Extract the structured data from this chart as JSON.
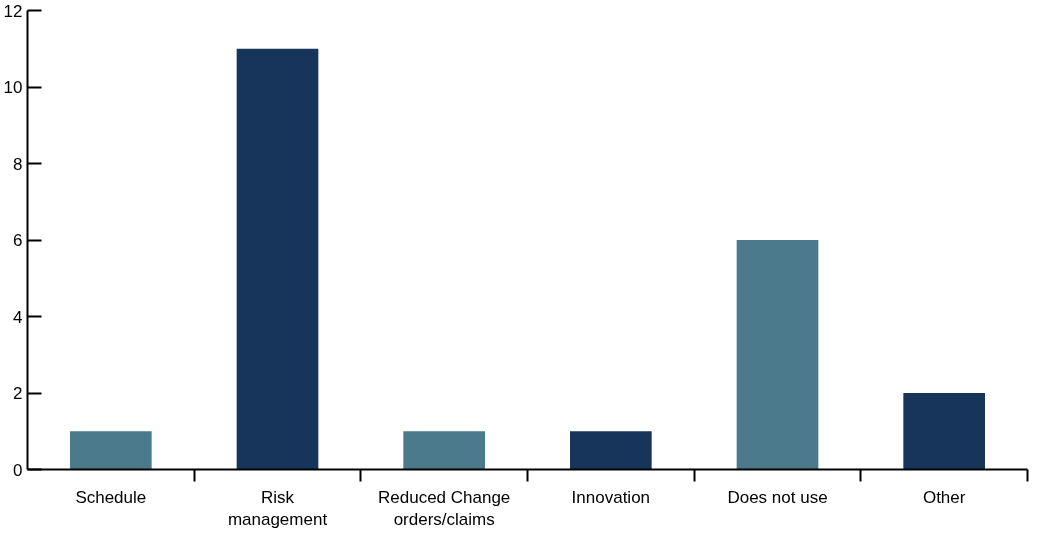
{
  "chart_data": {
    "type": "bar",
    "categories": [
      "Schedule",
      "Risk management",
      "Reduced Change orders/claims",
      "Innovation",
      "Does not use",
      "Other"
    ],
    "values": [
      1,
      11,
      1,
      1,
      6,
      2
    ],
    "colors": [
      "#4a7a8c",
      "#17355a",
      "#4a7a8c",
      "#17355a",
      "#4a7a8c",
      "#17355a"
    ],
    "ylim": [
      0,
      12
    ],
    "yticks": [
      0,
      2,
      4,
      6,
      8,
      10,
      12
    ],
    "grid": false
  }
}
